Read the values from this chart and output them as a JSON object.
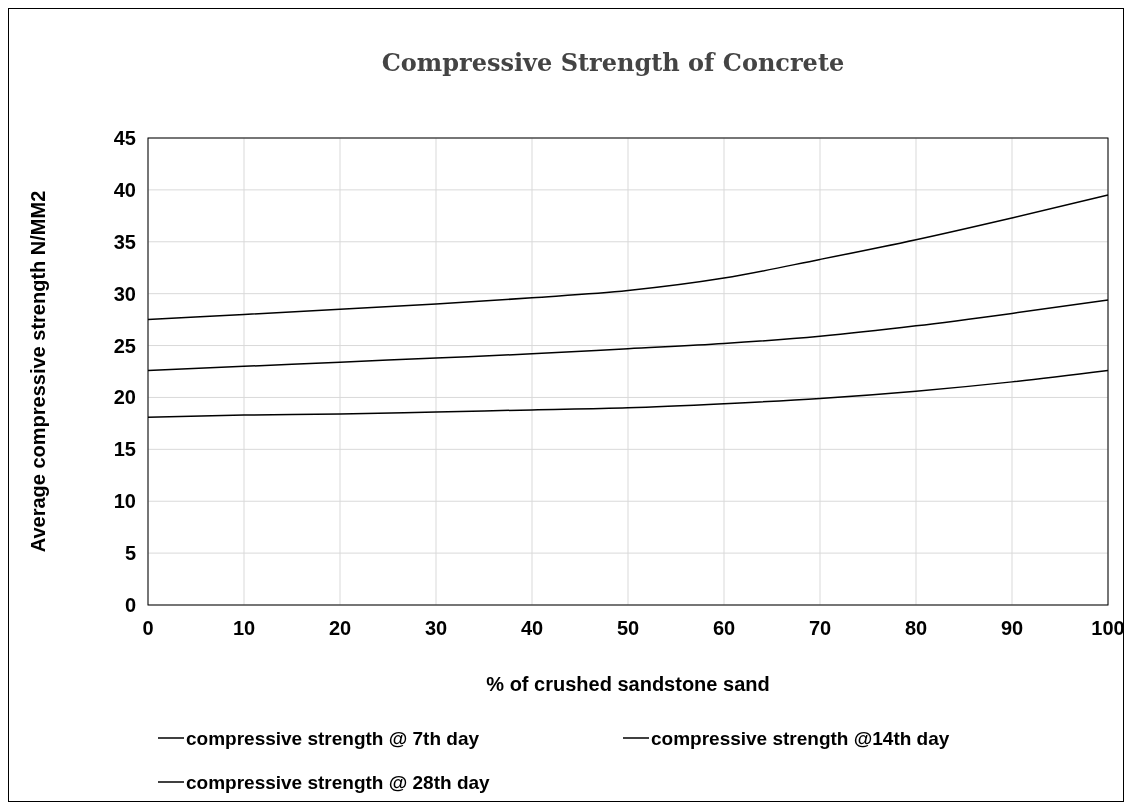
{
  "chart_data": {
    "type": "line",
    "title": "Compressive Strength of Concrete",
    "xlabel": "% of crushed sandstone sand",
    "ylabel": "Average compressive strength N/MM2",
    "x": [
      0,
      10,
      20,
      30,
      40,
      50,
      60,
      70,
      80,
      90,
      100
    ],
    "series": [
      {
        "name": "compressive strength @ 7th day",
        "color": "#000000",
        "values": [
          18.1,
          18.3,
          18.4,
          18.6,
          18.8,
          19,
          19.4,
          19.9,
          20.6,
          21.5,
          22.6
        ]
      },
      {
        "name": "compressive strength @14th day",
        "color": "#000000",
        "values": [
          22.6,
          23,
          23.4,
          23.8,
          24.2,
          24.7,
          25.2,
          25.9,
          26.9,
          28.1,
          29.4
        ]
      },
      {
        "name": "compressive strength @ 28th day",
        "color": "#000000",
        "values": [
          27.5,
          28,
          28.5,
          29,
          29.6,
          30.3,
          31.5,
          33.3,
          35.2,
          37.3,
          39.5
        ]
      }
    ],
    "xlim": [
      0,
      100
    ],
    "xticks": [
      0,
      10,
      20,
      30,
      40,
      50,
      60,
      70,
      80,
      90,
      100
    ],
    "ylim": [
      0,
      45
    ],
    "yticks": [
      0,
      5,
      10,
      15,
      20,
      25,
      30,
      35,
      40,
      45
    ],
    "grid": true,
    "legend": "bottom",
    "marker": "none",
    "line_style": "solid"
  }
}
